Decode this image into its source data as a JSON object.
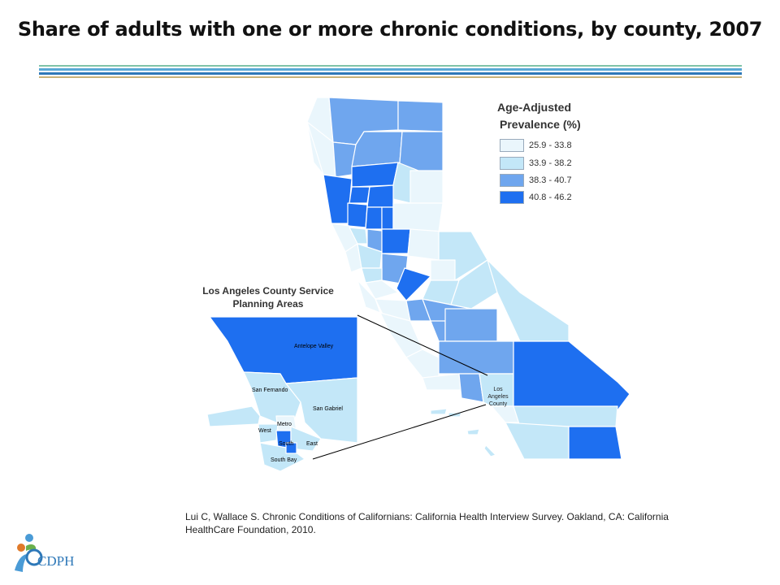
{
  "title": "Share of adults with one or more chronic conditions, by county, 2007",
  "legend": {
    "title_line1": "Age-Adjusted",
    "title_line2": "Prevalence (%)",
    "items": [
      {
        "label": "25.9 - 33.8",
        "color": "#eaf6fc"
      },
      {
        "label": "33.9 - 38.2",
        "color": "#c3e7f8"
      },
      {
        "label": "38.3 - 40.7",
        "color": "#6fa6ee"
      },
      {
        "label": "40.8 - 46.2",
        "color": "#1e6ff0"
      }
    ]
  },
  "la_inset": {
    "title_line1": "Los Angeles County Service",
    "title_line2": "Planning Areas",
    "areas": [
      "Antelope Valley",
      "San Fernando",
      "San Gabriel",
      "Metro",
      "West",
      "South",
      "East",
      "South Bay"
    ]
  },
  "la_marker": {
    "line1": "Los",
    "line2": "Angeles",
    "line3": "County"
  },
  "citation": "Lui C, Wallace S. Chronic Conditions of Californians: California Health Interview Survey. Oakland, CA: California HealthCare Foundation, 2010.",
  "logo_text": "CDPH",
  "rule_colors": [
    "#7fc3a8",
    "#5aa9d6",
    "#2e78b8",
    "#c8b27a"
  ]
}
